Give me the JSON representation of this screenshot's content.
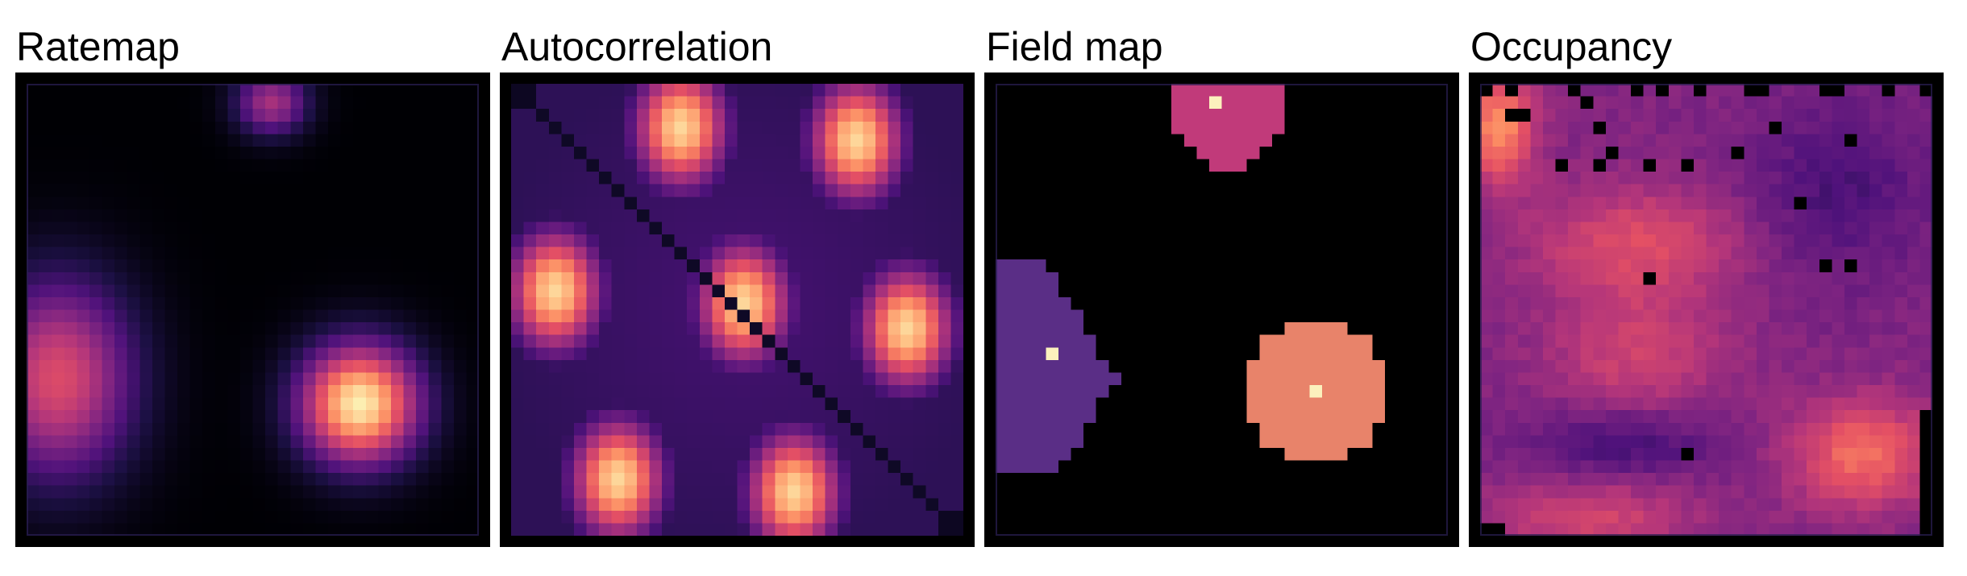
{
  "panels": [
    {
      "title": "Ratemap",
      "kind": "ratemap"
    },
    {
      "title": "Autocorrelation",
      "kind": "autocorrelation"
    },
    {
      "title": "Field map",
      "kind": "fieldmap"
    },
    {
      "title": "Occupancy",
      "kind": "occupancy"
    }
  ],
  "colormap": "magma",
  "colors": {
    "background": "#000000",
    "field_1": "#5a2e86",
    "field_2": "#c13a7a",
    "field_3": "#e8836a",
    "field_peak": "#fcf1bd"
  }
}
